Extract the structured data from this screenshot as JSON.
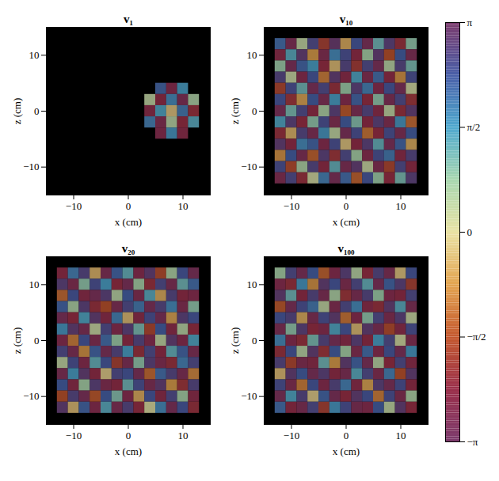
{
  "chart_data": [
    {
      "type": "heatmap",
      "title": "v₁",
      "x_label": "x (cm)",
      "y_label": "z (cm)",
      "xlim": [
        -15,
        15
      ],
      "ylim": [
        -15,
        15
      ],
      "xticks": [
        -10,
        0,
        10
      ],
      "yticks": [
        -10,
        0,
        10
      ],
      "x": [
        -14,
        -12,
        -10,
        -8,
        -6,
        -4,
        -2,
        0,
        2,
        4,
        6,
        8,
        10,
        12,
        14
      ],
      "y": [
        14,
        12,
        10,
        8,
        6,
        4,
        2,
        0,
        -2,
        -4,
        -6,
        -8,
        -10,
        -12,
        -14
      ],
      "values": [
        [
          null,
          null,
          null,
          null,
          null,
          null,
          null,
          null,
          null,
          null,
          null,
          null,
          null,
          null,
          null
        ],
        [
          null,
          null,
          null,
          null,
          null,
          null,
          null,
          null,
          null,
          null,
          null,
          null,
          null,
          null,
          null
        ],
        [
          null,
          null,
          null,
          null,
          null,
          null,
          null,
          null,
          null,
          null,
          null,
          null,
          null,
          null,
          null
        ],
        [
          null,
          null,
          null,
          null,
          null,
          null,
          null,
          null,
          null,
          null,
          null,
          null,
          null,
          null,
          null
        ],
        [
          null,
          null,
          null,
          null,
          null,
          null,
          null,
          null,
          null,
          null,
          null,
          null,
          null,
          null,
          null
        ],
        [
          null,
          null,
          null,
          null,
          null,
          null,
          null,
          null,
          null,
          null,
          2.2,
          -2.6,
          1.6,
          null,
          null
        ],
        [
          null,
          null,
          null,
          null,
          null,
          null,
          null,
          null,
          null,
          0.4,
          -2.4,
          1.8,
          -2.8,
          0.6,
          null
        ],
        [
          null,
          null,
          null,
          null,
          null,
          null,
          null,
          null,
          null,
          -2.5,
          1.5,
          -0.3,
          2.0,
          -2.2,
          null
        ],
        [
          null,
          null,
          null,
          null,
          null,
          null,
          null,
          null,
          null,
          1.9,
          -2.7,
          0.5,
          -2.3,
          1.4,
          null
        ],
        [
          null,
          null,
          null,
          null,
          null,
          null,
          null,
          null,
          null,
          null,
          -2.6,
          1.7,
          -2.5,
          null,
          null
        ],
        [
          null,
          null,
          null,
          null,
          null,
          null,
          null,
          null,
          null,
          null,
          null,
          null,
          null,
          null,
          null
        ],
        [
          null,
          null,
          null,
          null,
          null,
          null,
          null,
          null,
          null,
          null,
          null,
          null,
          null,
          null,
          null
        ],
        [
          null,
          null,
          null,
          null,
          null,
          null,
          null,
          null,
          null,
          null,
          null,
          null,
          null,
          null,
          null
        ],
        [
          null,
          null,
          null,
          null,
          null,
          null,
          null,
          null,
          null,
          null,
          null,
          null,
          null,
          null,
          null
        ],
        [
          null,
          null,
          null,
          null,
          null,
          null,
          null,
          null,
          null,
          null,
          null,
          null,
          null,
          null,
          null
        ]
      ]
    },
    {
      "type": "heatmap",
      "title": "v₁₀",
      "x_label": "x (cm)",
      "y_label": "z (cm)",
      "xlim": [
        -15,
        15
      ],
      "ylim": [
        -15,
        15
      ],
      "xticks": [
        -10,
        0,
        10
      ],
      "yticks": [
        -10,
        0,
        10
      ],
      "x": [
        -14,
        -12,
        -10,
        -8,
        -6,
        -4,
        -2,
        0,
        2,
        4,
        6,
        8,
        10,
        12,
        14
      ],
      "y": [
        14,
        12,
        10,
        8,
        6,
        4,
        2,
        0,
        -2,
        -4,
        -6,
        -8,
        -10,
        -12,
        -14
      ],
      "values": [
        [
          null,
          null,
          null,
          null,
          null,
          null,
          null,
          null,
          null,
          null,
          null,
          null,
          null,
          null,
          null
        ],
        [
          null,
          2.1,
          -2.8,
          0.4,
          2.6,
          -1.9,
          3.0,
          -0.6,
          2.4,
          -2.9,
          1.2,
          2.8,
          -2.2,
          0.9,
          null
        ],
        [
          null,
          -2.5,
          1.4,
          2.9,
          -0.8,
          -2.7,
          1.8,
          2.5,
          -2.4,
          0.7,
          2.9,
          -1.6,
          2.3,
          -2.8,
          null
        ],
        [
          null,
          0.8,
          -2.9,
          2.2,
          1.6,
          -2.3,
          -0.4,
          2.7,
          -2.0,
          2.6,
          -2.9,
          0.5,
          2.7,
          1.1,
          null
        ],
        [
          null,
          2.7,
          0.3,
          -2.6,
          2.4,
          -1.1,
          2.9,
          -2.5,
          1.5,
          -2.7,
          2.1,
          -2.4,
          -0.9,
          2.5,
          null
        ],
        [
          null,
          -1.8,
          2.5,
          1.2,
          -2.9,
          2.6,
          -2.2,
          0.8,
          2.8,
          1.9,
          -2.6,
          2.4,
          -2.9,
          0.2,
          null
        ],
        [
          null,
          2.4,
          -2.1,
          -0.7,
          2.3,
          -2.8,
          1.6,
          -2.6,
          2.2,
          -2.3,
          0.9,
          -2.8,
          2.6,
          -2.1,
          null
        ],
        [
          null,
          -2.9,
          1.1,
          2.6,
          -2.4,
          0.6,
          2.8,
          -1.5,
          -2.8,
          2.7,
          -2.5,
          0.4,
          -2.2,
          2.9,
          null
        ],
        [
          null,
          1.5,
          2.8,
          -2.3,
          0.9,
          2.5,
          -2.7,
          2.3,
          1.0,
          -2.4,
          2.8,
          -2.7,
          1.7,
          -1.3,
          null
        ],
        [
          null,
          -2.2,
          -0.5,
          2.7,
          -2.8,
          1.7,
          0.4,
          -2.9,
          2.5,
          -1.2,
          -2.3,
          2.5,
          -2.8,
          2.3,
          null
        ],
        [
          null,
          2.9,
          -2.4,
          1.8,
          2.2,
          -2.6,
          2.5,
          -0.3,
          -2.4,
          2.8,
          1.3,
          -2.9,
          2.2,
          -0.6,
          null
        ],
        [
          null,
          -0.9,
          2.3,
          -2.8,
          -1.4,
          2.8,
          -2.1,
          2.6,
          0.7,
          -2.6,
          2.5,
          2.0,
          -2.5,
          2.7,
          null
        ],
        [
          null,
          2.5,
          -1.7,
          0.6,
          2.7,
          -2.4,
          1.3,
          -2.8,
          2.9,
          0.3,
          -2.7,
          -1.8,
          2.6,
          -2.4,
          null
        ],
        [
          null,
          -2.7,
          2.6,
          -2.2,
          0.2,
          1.9,
          -2.9,
          2.1,
          -1.4,
          2.4,
          0.8,
          -2.3,
          1.1,
          2.8,
          null
        ],
        [
          null,
          null,
          null,
          null,
          null,
          null,
          null,
          null,
          null,
          null,
          null,
          null,
          null,
          null,
          null
        ]
      ]
    },
    {
      "type": "heatmap",
      "title": "v₂₀",
      "x_label": "x (cm)",
      "y_label": "z (cm)",
      "xlim": [
        -15,
        15
      ],
      "ylim": [
        -15,
        15
      ],
      "xticks": [
        -10,
        0,
        10
      ],
      "yticks": [
        -10,
        0,
        10
      ],
      "x": [
        -14,
        -12,
        -10,
        -8,
        -6,
        -4,
        -2,
        0,
        2,
        4,
        6,
        8,
        10,
        12,
        14
      ],
      "y": [
        14,
        12,
        10,
        8,
        6,
        4,
        2,
        0,
        -2,
        -4,
        -6,
        -8,
        -10,
        -12,
        -14
      ],
      "values": [
        [
          null,
          null,
          null,
          null,
          null,
          null,
          null,
          null,
          null,
          null,
          null,
          null,
          null,
          null,
          null
        ],
        [
          null,
          -2.4,
          1.9,
          2.7,
          -0.5,
          -2.8,
          2.2,
          1.3,
          -2.6,
          2.9,
          -1.7,
          0.6,
          2.4,
          -2.9,
          null
        ],
        [
          null,
          2.8,
          -2.7,
          0.9,
          2.5,
          1.6,
          -2.3,
          -2.9,
          0.7,
          -2.2,
          2.6,
          -2.8,
          1.2,
          2.1,
          null
        ],
        [
          null,
          -1.3,
          2.4,
          -2.5,
          -2.9,
          2.8,
          0.5,
          2.3,
          -2.7,
          1.4,
          -0.6,
          2.7,
          -2.4,
          -2.6,
          null
        ],
        [
          null,
          2.2,
          0.6,
          2.8,
          -2.2,
          -1.6,
          -2.8,
          2.6,
          2.0,
          -2.9,
          2.7,
          1.8,
          -2.7,
          0.9,
          null
        ],
        [
          null,
          -2.9,
          -2.3,
          1.5,
          2.9,
          -2.5,
          1.9,
          -0.4,
          -2.5,
          2.5,
          -2.9,
          -0.7,
          2.8,
          2.4,
          null
        ],
        [
          null,
          1.7,
          2.9,
          -2.8,
          0.3,
          2.6,
          -2.6,
          2.8,
          1.1,
          -1.8,
          2.3,
          -2.5,
          0.5,
          -2.3,
          null
        ],
        [
          null,
          -2.6,
          -1.1,
          2.4,
          -2.7,
          2.1,
          0.8,
          -2.4,
          2.7,
          -2.6,
          0.4,
          2.9,
          -2.6,
          1.5,
          null
        ],
        [
          null,
          2.6,
          -2.8,
          -0.9,
          2.2,
          -2.9,
          2.7,
          1.6,
          -2.2,
          2.6,
          -2.4,
          1.3,
          2.2,
          -2.8,
          null
        ],
        [
          null,
          0.4,
          2.5,
          -2.6,
          1.3,
          2.4,
          -1.9,
          -2.8,
          0.9,
          2.8,
          -2.7,
          -2.2,
          1.9,
          2.6,
          null
        ],
        [
          null,
          -2.8,
          1.6,
          2.9,
          -2.4,
          -0.2,
          2.6,
          2.4,
          -2.9,
          -1.3,
          2.1,
          2.7,
          -2.8,
          -1.0,
          null
        ],
        [
          null,
          2.3,
          -2.5,
          0.7,
          2.8,
          -2.7,
          -2.4,
          1.2,
          2.5,
          -2.8,
          2.9,
          -0.8,
          -2.1,
          2.7,
          null
        ],
        [
          null,
          -1.6,
          2.7,
          -2.9,
          -1.5,
          2.3,
          1.0,
          -2.6,
          -0.6,
          2.4,
          -2.5,
          2.6,
          0.7,
          -2.5,
          null
        ],
        [
          null,
          2.9,
          -0.4,
          2.2,
          -2.6,
          1.4,
          -2.8,
          2.7,
          -2.3,
          0.1,
          1.8,
          -2.9,
          2.4,
          -2.2,
          null
        ],
        [
          null,
          null,
          null,
          null,
          null,
          null,
          null,
          null,
          null,
          null,
          null,
          null,
          null,
          null,
          null
        ]
      ]
    },
    {
      "type": "heatmap",
      "title": "v₁₀₀",
      "x_label": "x (cm)",
      "y_label": "z (cm)",
      "xlim": [
        -15,
        15
      ],
      "ylim": [
        -15,
        15
      ],
      "xticks": [
        -10,
        0,
        10
      ],
      "yticks": [
        -10,
        0,
        10
      ],
      "x": [
        -14,
        -12,
        -10,
        -8,
        -6,
        -4,
        -2,
        0,
        2,
        4,
        6,
        8,
        10,
        12,
        14
      ],
      "y": [
        14,
        12,
        10,
        8,
        6,
        4,
        2,
        0,
        -2,
        -4,
        -6,
        -8,
        -10,
        -12,
        -14
      ],
      "values": [
        [
          null,
          null,
          null,
          null,
          null,
          null,
          null,
          null,
          null,
          null,
          null,
          null,
          null,
          null,
          null
        ],
        [
          null,
          0.7,
          2.6,
          -2.9,
          2.3,
          -1.4,
          -2.6,
          2.8,
          0.5,
          -2.3,
          2.7,
          -2.8,
          -0.3,
          2.4,
          null
        ],
        [
          null,
          -2.6,
          -2.2,
          1.7,
          -0.9,
          2.9,
          2.4,
          -2.7,
          2.6,
          1.3,
          -2.9,
          2.2,
          2.8,
          -1.9,
          null
        ],
        [
          null,
          2.9,
          1.2,
          -2.4,
          2.7,
          -2.8,
          0.6,
          -2.1,
          -2.8,
          2.7,
          0.8,
          -2.6,
          -2.4,
          2.6,
          null
        ],
        [
          null,
          -1.5,
          -2.9,
          2.5,
          2.0,
          0.4,
          -2.7,
          2.6,
          1.8,
          -2.5,
          -2.2,
          2.9,
          1.4,
          -2.8,
          null
        ],
        [
          null,
          2.4,
          2.7,
          -0.6,
          -2.8,
          2.5,
          2.9,
          -1.2,
          -2.6,
          0.9,
          2.6,
          -2.7,
          2.8,
          0.3,
          null
        ],
        [
          null,
          -2.8,
          0.9,
          2.8,
          -2.3,
          -2.6,
          1.5,
          2.4,
          -0.4,
          2.9,
          -2.8,
          -1.7,
          -2.5,
          2.5,
          null
        ],
        [
          null,
          1.8,
          -2.6,
          -2.2,
          1.1,
          2.7,
          -2.9,
          -2.5,
          2.8,
          -2.4,
          1.6,
          2.6,
          0.2,
          -2.7,
          null
        ],
        [
          null,
          -2.2,
          2.4,
          0.5,
          2.9,
          -2.1,
          2.3,
          0.7,
          -2.7,
          2.1,
          -2.6,
          2.4,
          -2.9,
          1.7,
          null
        ],
        [
          null,
          2.7,
          -1.8,
          -2.7,
          -2.5,
          1.2,
          -0.8,
          2.9,
          2.2,
          -2.9,
          0.5,
          -2.3,
          2.6,
          -2.5,
          null
        ],
        [
          null,
          -0.4,
          2.9,
          2.3,
          -2.9,
          2.8,
          -2.4,
          -2.8,
          1.4,
          2.6,
          -2.7,
          1.9,
          -1.6,
          2.9,
          null
        ],
        [
          null,
          2.5,
          -2.7,
          -1.1,
          2.4,
          -2.6,
          2.7,
          1.9,
          -2.5,
          -0.7,
          2.8,
          -2.9,
          2.5,
          -2.4,
          null
        ],
        [
          null,
          -2.9,
          1.5,
          2.7,
          -0.2,
          2.2,
          -2.9,
          -2.3,
          2.9,
          2.4,
          -1.1,
          2.5,
          -2.7,
          0.6,
          null
        ],
        [
          null,
          2.1,
          -2.4,
          -2.8,
          2.6,
          -1.9,
          1.7,
          2.5,
          -2.8,
          -2.6,
          2.3,
          0.4,
          2.9,
          -2.3,
          null
        ],
        [
          null,
          null,
          null,
          null,
          null,
          null,
          null,
          null,
          null,
          null,
          null,
          null,
          null,
          null,
          null
        ]
      ]
    }
  ],
  "colorbar": {
    "range": [
      -3.14159,
      3.14159
    ],
    "ticks": [
      {
        "value": -3.14159,
        "label": "−π"
      },
      {
        "value": -1.5708,
        "label": "−π/2"
      },
      0,
      {
        "value": 1.5708,
        "label": "π/2"
      },
      {
        "value": 3.14159,
        "label": "π"
      }
    ]
  }
}
